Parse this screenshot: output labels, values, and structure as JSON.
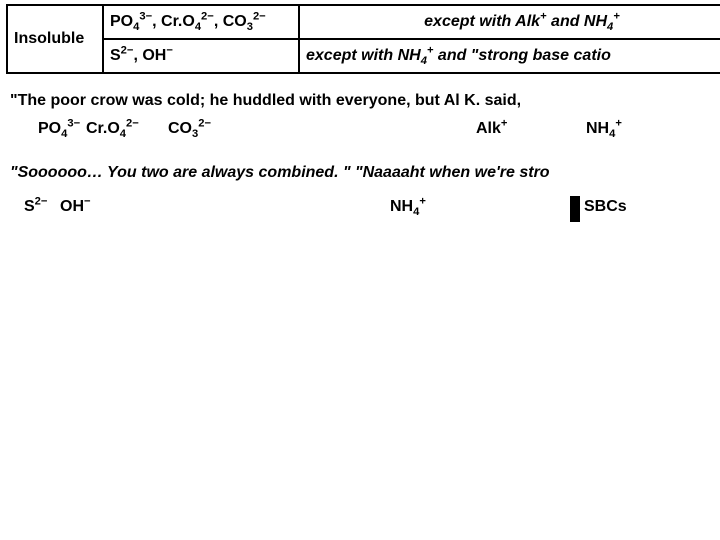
{
  "table": {
    "border_color": "#000000",
    "label": "Insoluble",
    "row1": {
      "ions_html": "PO<sub>4</sub><sup>3−</sup>, Cr.O<sub>4</sub><sup>2−</sup>, CO<sub>3</sub><sup>2−</sup>",
      "except_html": "except with Alk<sup>+</sup> and NH<sub>4</sub><sup>+</sup>"
    },
    "row2": {
      "ions_html": "S<sup>2−</sup>, OH<sup>−</sup>",
      "except_html": "except with NH<sub>4</sub><sup>+</sup> and \"strong base catio"
    }
  },
  "line1": "\"The poor crow was cold; he huddled with everyone, but Al K. said,",
  "tokens1": {
    "po4_html": "PO<sub>4</sub><sup>3−</sup>",
    "cro4_html": "Cr.O<sub>4</sub><sup>2−</sup>",
    "co3_html": "CO<sub>3</sub><sup>2−</sup>",
    "alk_html": "Alk<sup>+</sup>",
    "nh4_html": "NH<sub>4</sub><sup>+</sup>"
  },
  "line2": "\"Soooooo… You two are always combined. \"   \"Naaaaht when we're stro",
  "tokens2": {
    "s2_html": "S<sup>2−</sup>",
    "oh_html": "OH<sup>−</sup>",
    "nh4_html": "NH<sub>4</sub><sup>+</sup>",
    "sbc": "SBCs"
  },
  "positions": {
    "row2": {
      "po4": 28,
      "cro4": 76,
      "co3": 158,
      "alk": 466,
      "nh4": 576
    },
    "row3": {
      "s2": 14,
      "oh": 50,
      "nh4": 380,
      "bar": 560,
      "sbc": 574
    }
  }
}
